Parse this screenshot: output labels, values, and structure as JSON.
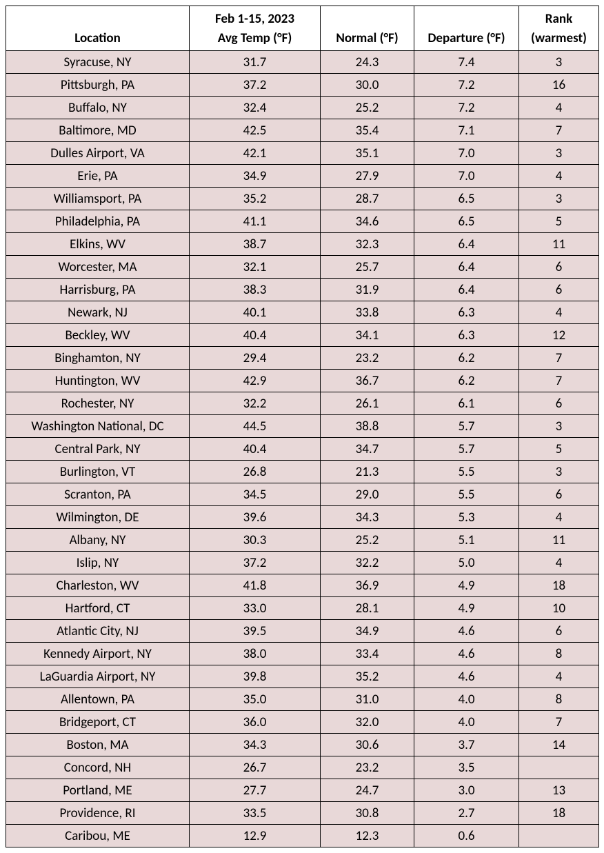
{
  "table": {
    "columns": [
      {
        "line1": "",
        "line2": "Location"
      },
      {
        "line1": "Feb 1-15, 2023",
        "line2": "Avg Temp (°F)"
      },
      {
        "line1": "",
        "line2": "Normal (°F)"
      },
      {
        "line1": "",
        "line2": "Departure (°F)"
      },
      {
        "line1": "Rank",
        "line2": "(warmest)"
      }
    ],
    "header_bg": "#ffffff",
    "row_bg": "#e8d8d8",
    "border_color": "#000000",
    "font_size": 19,
    "rows": [
      {
        "location": "Syracuse, NY",
        "avg": "31.7",
        "normal": "24.3",
        "departure": "7.4",
        "rank": "3"
      },
      {
        "location": "Pittsburgh, PA",
        "avg": "37.2",
        "normal": "30.0",
        "departure": "7.2",
        "rank": "16"
      },
      {
        "location": "Buffalo, NY",
        "avg": "32.4",
        "normal": "25.2",
        "departure": "7.2",
        "rank": "4"
      },
      {
        "location": "Baltimore, MD",
        "avg": "42.5",
        "normal": "35.4",
        "departure": "7.1",
        "rank": "7"
      },
      {
        "location": "Dulles Airport, VA",
        "avg": "42.1",
        "normal": "35.1",
        "departure": "7.0",
        "rank": "3"
      },
      {
        "location": "Erie, PA",
        "avg": "34.9",
        "normal": "27.9",
        "departure": "7.0",
        "rank": "4"
      },
      {
        "location": "Williamsport, PA",
        "avg": "35.2",
        "normal": "28.7",
        "departure": "6.5",
        "rank": "3"
      },
      {
        "location": "Philadelphia, PA",
        "avg": "41.1",
        "normal": "34.6",
        "departure": "6.5",
        "rank": "5"
      },
      {
        "location": "Elkins, WV",
        "avg": "38.7",
        "normal": "32.3",
        "departure": "6.4",
        "rank": "11"
      },
      {
        "location": "Worcester, MA",
        "avg": "32.1",
        "normal": "25.7",
        "departure": "6.4",
        "rank": "6"
      },
      {
        "location": "Harrisburg, PA",
        "avg": "38.3",
        "normal": "31.9",
        "departure": "6.4",
        "rank": "6"
      },
      {
        "location": "Newark, NJ",
        "avg": "40.1",
        "normal": "33.8",
        "departure": "6.3",
        "rank": "4"
      },
      {
        "location": "Beckley, WV",
        "avg": "40.4",
        "normal": "34.1",
        "departure": "6.3",
        "rank": "12"
      },
      {
        "location": "Binghamton, NY",
        "avg": "29.4",
        "normal": "23.2",
        "departure": "6.2",
        "rank": "7"
      },
      {
        "location": "Huntington, WV",
        "avg": "42.9",
        "normal": "36.7",
        "departure": "6.2",
        "rank": "7"
      },
      {
        "location": "Rochester, NY",
        "avg": "32.2",
        "normal": "26.1",
        "departure": "6.1",
        "rank": "6"
      },
      {
        "location": "Washington National, DC",
        "avg": "44.5",
        "normal": "38.8",
        "departure": "5.7",
        "rank": "3"
      },
      {
        "location": "Central Park, NY",
        "avg": "40.4",
        "normal": "34.7",
        "departure": "5.7",
        "rank": "5"
      },
      {
        "location": "Burlington, VT",
        "avg": "26.8",
        "normal": "21.3",
        "departure": "5.5",
        "rank": "3"
      },
      {
        "location": "Scranton, PA",
        "avg": "34.5",
        "normal": "29.0",
        "departure": "5.5",
        "rank": "6"
      },
      {
        "location": "Wilmington, DE",
        "avg": "39.6",
        "normal": "34.3",
        "departure": "5.3",
        "rank": "4"
      },
      {
        "location": "Albany, NY",
        "avg": "30.3",
        "normal": "25.2",
        "departure": "5.1",
        "rank": "11"
      },
      {
        "location": "Islip, NY",
        "avg": "37.2",
        "normal": "32.2",
        "departure": "5.0",
        "rank": "4"
      },
      {
        "location": "Charleston, WV",
        "avg": "41.8",
        "normal": "36.9",
        "departure": "4.9",
        "rank": "18"
      },
      {
        "location": "Hartford, CT",
        "avg": "33.0",
        "normal": "28.1",
        "departure": "4.9",
        "rank": "10"
      },
      {
        "location": "Atlantic City, NJ",
        "avg": "39.5",
        "normal": "34.9",
        "departure": "4.6",
        "rank": "6"
      },
      {
        "location": "Kennedy Airport, NY",
        "avg": "38.0",
        "normal": "33.4",
        "departure": "4.6",
        "rank": "8"
      },
      {
        "location": "LaGuardia Airport, NY",
        "avg": "39.8",
        "normal": "35.2",
        "departure": "4.6",
        "rank": "4"
      },
      {
        "location": "Allentown, PA",
        "avg": "35.0",
        "normal": "31.0",
        "departure": "4.0",
        "rank": "8"
      },
      {
        "location": "Bridgeport, CT",
        "avg": "36.0",
        "normal": "32.0",
        "departure": "4.0",
        "rank": "7"
      },
      {
        "location": "Boston, MA",
        "avg": "34.3",
        "normal": "30.6",
        "departure": "3.7",
        "rank": "14"
      },
      {
        "location": "Concord, NH",
        "avg": "26.7",
        "normal": "23.2",
        "departure": "3.5",
        "rank": ""
      },
      {
        "location": "Portland, ME",
        "avg": "27.7",
        "normal": "24.7",
        "departure": "3.0",
        "rank": "13"
      },
      {
        "location": "Providence, RI",
        "avg": "33.5",
        "normal": "30.8",
        "departure": "2.7",
        "rank": "18"
      },
      {
        "location": "Caribou, ME",
        "avg": "12.9",
        "normal": "12.3",
        "departure": "0.6",
        "rank": ""
      }
    ]
  }
}
